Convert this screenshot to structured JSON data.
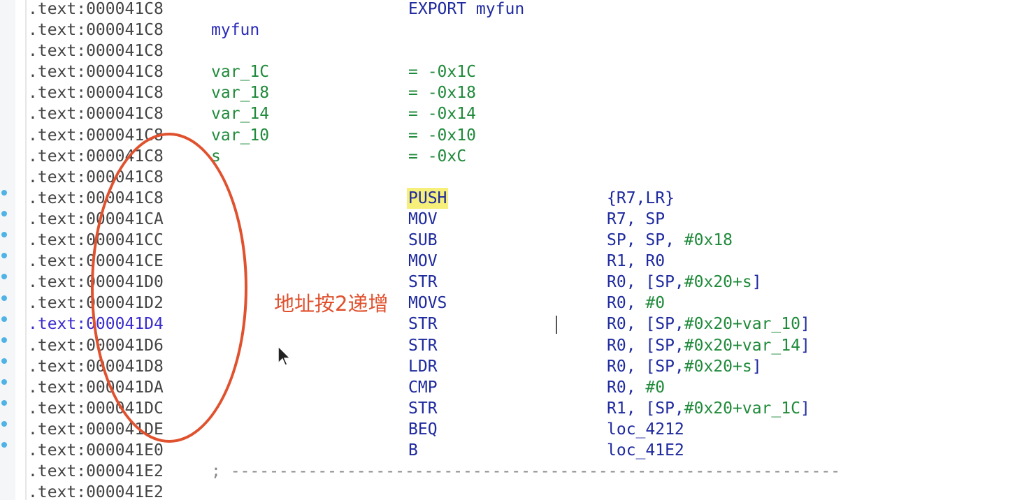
{
  "listing": {
    "rows": [
      {
        "addr": ".text:000041C8",
        "label": "",
        "mnem": "EXPORT myfun",
        "ops": []
      },
      {
        "addr": ".text:000041C8",
        "label": "myfun",
        "label_kind": "fn",
        "mnem": "",
        "ops": []
      },
      {
        "addr": ".text:000041C8",
        "label": "",
        "mnem": "",
        "ops": []
      },
      {
        "addr": ".text:000041C8",
        "label": "var_1C",
        "label_kind": "var",
        "mnem": "= -0x1C",
        "mnem_kind": "num",
        "ops": []
      },
      {
        "addr": ".text:000041C8",
        "label": "var_18",
        "label_kind": "var",
        "mnem": "= -0x18",
        "mnem_kind": "num",
        "ops": []
      },
      {
        "addr": ".text:000041C8",
        "label": "var_14",
        "label_kind": "var",
        "mnem": "= -0x14",
        "mnem_kind": "num",
        "ops": []
      },
      {
        "addr": ".text:000041C8",
        "label": "var_10",
        "label_kind": "var",
        "mnem": "= -0x10",
        "mnem_kind": "num",
        "ops": []
      },
      {
        "addr": ".text:000041C8",
        "label": "s",
        "label_kind": "var",
        "mnem": "= -0xC",
        "mnem_kind": "num",
        "ops": []
      },
      {
        "addr": ".text:000041C8",
        "label": "",
        "mnem": "",
        "ops": []
      },
      {
        "addr": ".text:000041C8",
        "label": "",
        "mnem": "PUSH",
        "mnem_highlight": true,
        "ops": [
          {
            "t": "{R7,LR}"
          }
        ]
      },
      {
        "addr": ".text:000041CA",
        "label": "",
        "mnem": "MOV",
        "ops": [
          {
            "t": "R7, SP"
          }
        ]
      },
      {
        "addr": ".text:000041CC",
        "label": "",
        "mnem": "SUB",
        "ops": [
          {
            "t": "SP, SP, "
          },
          {
            "t": "#0x18",
            "num": true
          }
        ]
      },
      {
        "addr": ".text:000041CE",
        "label": "",
        "mnem": "MOV",
        "ops": [
          {
            "t": "R1, R0"
          }
        ]
      },
      {
        "addr": ".text:000041D0",
        "label": "",
        "mnem": "STR",
        "ops": [
          {
            "t": "R0, [SP,"
          },
          {
            "t": "#0x20+s",
            "num": true
          },
          {
            "t": "]"
          }
        ]
      },
      {
        "addr": ".text:000041D2",
        "label": "",
        "mnem": "MOVS",
        "ops": [
          {
            "t": "R0, "
          },
          {
            "t": "#0",
            "num": true
          }
        ]
      },
      {
        "addr": ".text:000041D4",
        "addr_highlight": true,
        "label": "",
        "mnem": "STR",
        "ops": [
          {
            "t": "R0, [SP,"
          },
          {
            "t": "#0x20+var_10",
            "num": true
          },
          {
            "t": "]"
          }
        ]
      },
      {
        "addr": ".text:000041D6",
        "label": "",
        "mnem": "STR",
        "ops": [
          {
            "t": "R0, [SP,"
          },
          {
            "t": "#0x20+var_14",
            "num": true
          },
          {
            "t": "]"
          }
        ]
      },
      {
        "addr": ".text:000041D8",
        "label": "",
        "mnem": "LDR",
        "ops": [
          {
            "t": "R0, [SP,"
          },
          {
            "t": "#0x20+s",
            "num": true
          },
          {
            "t": "]"
          }
        ]
      },
      {
        "addr": ".text:000041DA",
        "label": "",
        "mnem": "CMP",
        "ops": [
          {
            "t": "R0, "
          },
          {
            "t": "#0",
            "num": true
          }
        ]
      },
      {
        "addr": ".text:000041DC",
        "label": "",
        "mnem": "STR",
        "ops": [
          {
            "t": "R1, [SP,"
          },
          {
            "t": "#0x20+var_1C",
            "num": true
          },
          {
            "t": "]"
          }
        ]
      },
      {
        "addr": ".text:000041DE",
        "label": "",
        "mnem": "BEQ",
        "ops": [
          {
            "t": "loc_4212"
          }
        ]
      },
      {
        "addr": ".text:000041E0",
        "label": "",
        "mnem": "B",
        "ops": [
          {
            "t": "loc_41E2"
          }
        ]
      },
      {
        "addr": ".text:000041E2",
        "label": "",
        "mnem": "",
        "comment": "; ---------------------------------------------------------------",
        "ops": []
      },
      {
        "addr": ".text:000041E2",
        "label": "",
        "mnem": "",
        "ops": []
      }
    ]
  },
  "annotation": {
    "text": "地址按2递增",
    "color": "#e0512e"
  },
  "gutter": {
    "marker_color": "#4fb3e6",
    "marker_count": 13
  }
}
